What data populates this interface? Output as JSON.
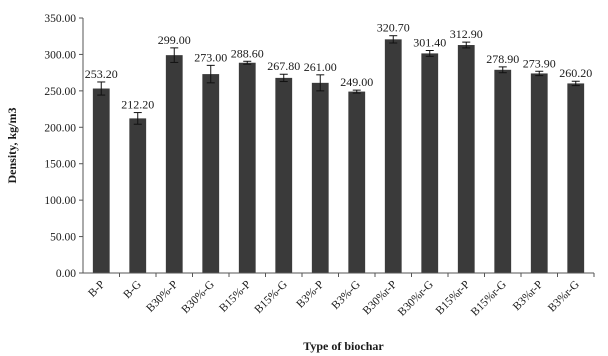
{
  "chart_data": {
    "type": "bar",
    "title": "",
    "xlabel": "Type of  biochar",
    "ylabel": "Density, kg/m3",
    "ylim": [
      0,
      350
    ],
    "yticks": [
      "0.00",
      "50.00",
      "100.00",
      "150.00",
      "200.00",
      "250.00",
      "300.00",
      "350.00"
    ],
    "ytick_values": [
      0,
      50,
      100,
      150,
      200,
      250,
      300,
      350
    ],
    "grid": false,
    "legend": "none",
    "bar_color": "#3a3a3a",
    "categories": [
      "B-P",
      "B-G",
      "B30%-P",
      "B30%-G",
      "B15%-P",
      "B15%-G",
      "B3%-P",
      "B3%-G",
      "B30%r-P",
      "B30%r-G",
      "B15%r-P",
      "B15%r-G",
      "B3%r-P",
      "B3%r-G"
    ],
    "values": [
      253.2,
      212.2,
      299.0,
      273.0,
      288.6,
      267.8,
      261.0,
      249.0,
      320.7,
      301.4,
      312.9,
      278.9,
      273.9,
      260.2
    ],
    "value_labels": [
      "253.20",
      "212.20",
      "299.00",
      "273.00",
      "288.60",
      "267.80",
      "261.00",
      "249.00",
      "320.70",
      "301.40",
      "312.90",
      "278.90",
      "273.90",
      "260.20"
    ],
    "errors": [
      9,
      8,
      10,
      12,
      2,
      5,
      11,
      2,
      5,
      4,
      4,
      4,
      3,
      3
    ]
  }
}
